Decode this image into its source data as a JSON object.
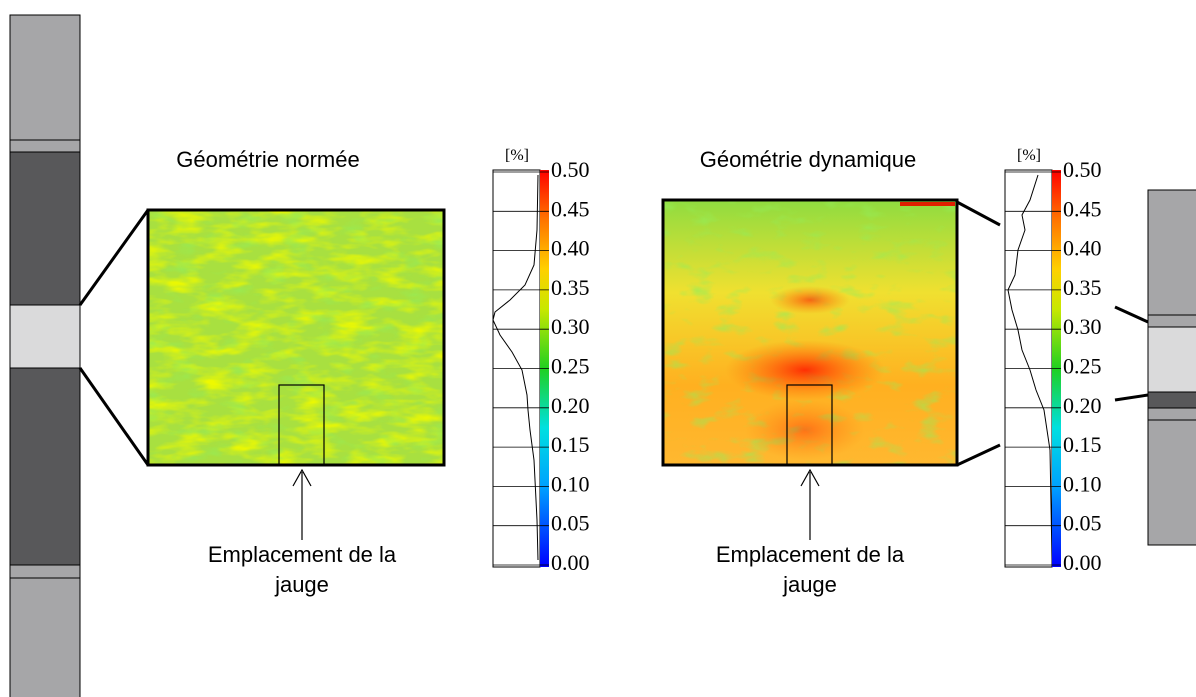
{
  "panels": [
    {
      "title": "Géométrie normée",
      "unit": "[%]",
      "ticks": [
        "0.50",
        "0.45",
        "0.40",
        "0.35",
        "0.30",
        "0.25",
        "0.20",
        "0.15",
        "0.10",
        "0.05",
        "0.00"
      ],
      "annotation": [
        "Emplacement de la",
        "jauge"
      ]
    },
    {
      "title": "Géométrie dynamique",
      "unit": "[%]",
      "ticks": [
        "0.50",
        "0.45",
        "0.40",
        "0.35",
        "0.30",
        "0.25",
        "0.20",
        "0.15",
        "0.10",
        "0.05",
        "0.00"
      ],
      "annotation": [
        "Emplacement de la",
        "jauge"
      ]
    }
  ]
}
